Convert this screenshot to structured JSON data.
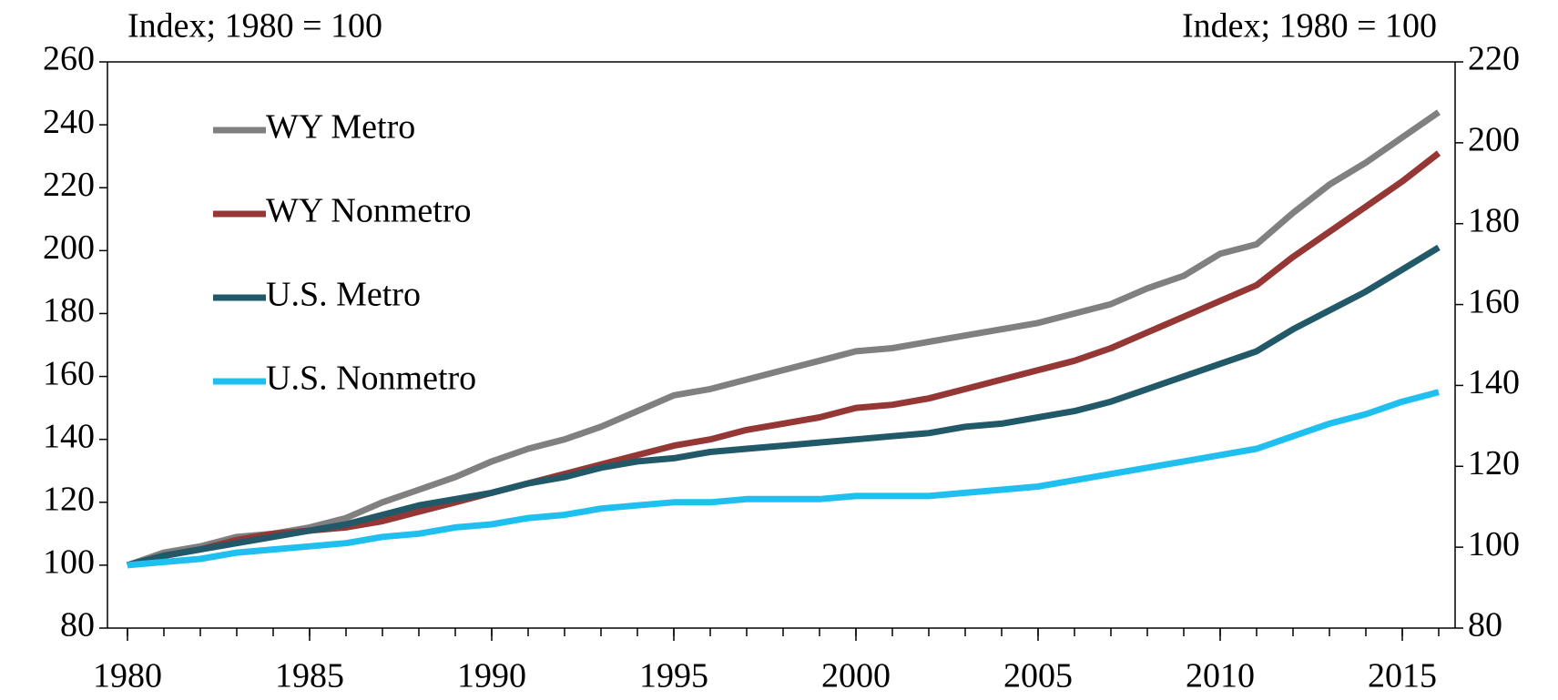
{
  "chart_data": {
    "type": "line",
    "ylabel": "Index; 1980 = 100",
    "y2label": "Index; 1980 = 100",
    "x": [
      1980,
      1981,
      1982,
      1983,
      1984,
      1985,
      1986,
      1987,
      1988,
      1989,
      1990,
      1991,
      1992,
      1993,
      1994,
      1995,
      1996,
      1997,
      1998,
      1999,
      2000,
      2001,
      2002,
      2003,
      2004,
      2005,
      2006,
      2007,
      2008,
      2009,
      2010,
      2011,
      2012,
      2013,
      2014,
      2015,
      2016
    ],
    "series": [
      {
        "name": "WY Metro",
        "color": "#808080",
        "values": [
          100,
          104,
          106,
          109,
          110,
          112,
          115,
          120,
          124,
          128,
          133,
          137,
          140,
          144,
          149,
          154,
          156,
          159,
          162,
          165,
          168,
          169,
          171,
          173,
          175,
          177,
          180,
          183,
          188,
          192,
          199,
          202,
          212,
          221,
          228,
          236,
          244
        ]
      },
      {
        "name": "WY Nonmetro",
        "color": "#953735",
        "values": [
          100,
          103,
          105,
          108,
          110,
          111,
          112,
          114,
          117,
          120,
          123,
          126,
          129,
          132,
          135,
          138,
          140,
          143,
          145,
          147,
          150,
          151,
          153,
          156,
          159,
          162,
          165,
          169,
          174,
          179,
          184,
          189,
          198,
          206,
          214,
          222,
          231
        ]
      },
      {
        "name": "U.S. Metro",
        "color": "#215968",
        "values": [
          100,
          103,
          105,
          107,
          109,
          111,
          113,
          116,
          119,
          121,
          123,
          126,
          128,
          131,
          133,
          134,
          136,
          137,
          138,
          139,
          140,
          141,
          142,
          144,
          145,
          147,
          149,
          152,
          156,
          160,
          164,
          168,
          175,
          181,
          187,
          194,
          201
        ]
      },
      {
        "name": "U.S. Nonmetro",
        "color": "#1fbfef",
        "values": [
          100,
          101,
          102,
          104,
          105,
          106,
          107,
          109,
          110,
          112,
          113,
          115,
          116,
          118,
          119,
          120,
          120,
          121,
          121,
          121,
          122,
          122,
          122,
          123,
          124,
          125,
          127,
          129,
          131,
          133,
          135,
          137,
          141,
          145,
          148,
          152,
          155
        ]
      }
    ],
    "xlim": [
      1979.45,
      2016.45
    ],
    "xticks": [
      1980,
      1985,
      1990,
      1995,
      2000,
      2005,
      2010,
      2015
    ],
    "ylim": [
      80,
      260
    ],
    "yticks": [
      80,
      100,
      120,
      140,
      160,
      180,
      200,
      220,
      240,
      260
    ],
    "y2lim": [
      80,
      220
    ],
    "y2ticks": [
      80,
      100,
      120,
      140,
      160,
      180,
      200,
      220
    ],
    "legend": "upper left"
  }
}
